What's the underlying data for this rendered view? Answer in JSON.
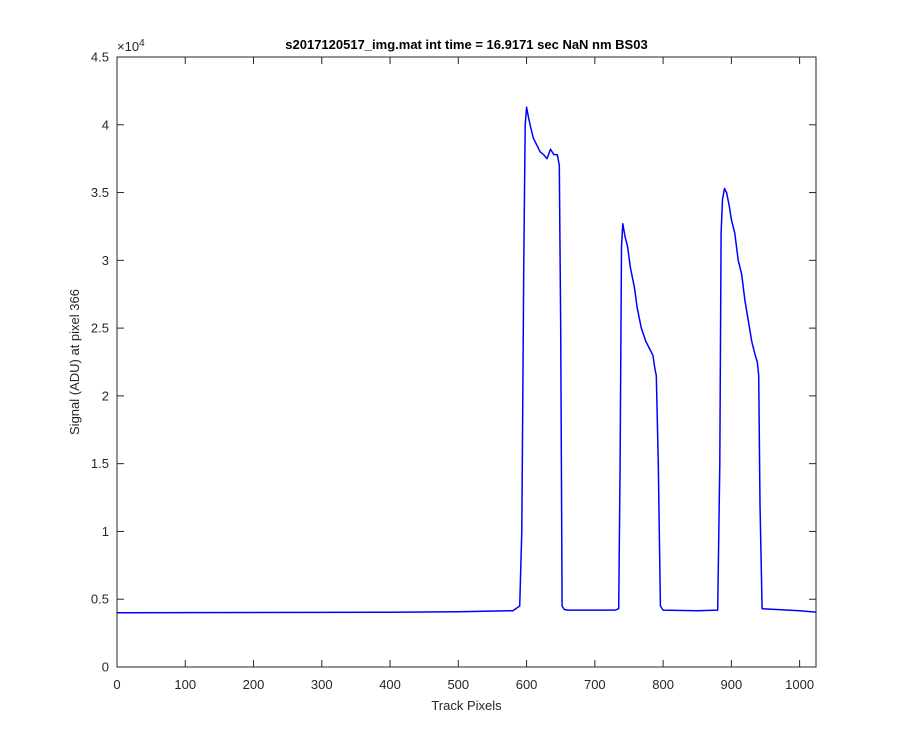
{
  "chart_data": {
    "type": "line",
    "title": "s2017120517_img.mat int time = 16.9171 sec  NaN nm BS03",
    "xlabel": "Track Pixels",
    "ylabel": "Signal (ADU) at pixel 366",
    "xlim": [
      0,
      1024
    ],
    "ylim": [
      0,
      45000
    ],
    "xticks": [
      0,
      100,
      200,
      300,
      400,
      500,
      600,
      700,
      800,
      900,
      1000
    ],
    "xtick_labels": [
      "0",
      "100",
      "200",
      "300",
      "400",
      "500",
      "600",
      "700",
      "800",
      "900",
      "1000"
    ],
    "yticks": [
      0,
      5000,
      10000,
      15000,
      20000,
      25000,
      30000,
      35000,
      40000,
      45000
    ],
    "ytick_labels": [
      "0",
      "0.5",
      "1",
      "1.5",
      "2",
      "2.5",
      "3",
      "3.5",
      "4",
      "4.5"
    ],
    "y_exponent_label": "×10",
    "y_exponent_power": "4",
    "grid": false,
    "line_color": "#0000ff",
    "series": [
      {
        "x": [
          0,
          100,
          200,
          300,
          400,
          500,
          580,
          590,
          593,
          596,
          598,
          600,
          603,
          606,
          610,
          615,
          620,
          625,
          630,
          635,
          640,
          645,
          648,
          650,
          652,
          655,
          660,
          700,
          730,
          735,
          737,
          739,
          741,
          744,
          748,
          752,
          758,
          762,
          768,
          775,
          780,
          785,
          788,
          790,
          793,
          796,
          800,
          850,
          880,
          883,
          885,
          887,
          890,
          893,
          897,
          900,
          905,
          910,
          915,
          920,
          925,
          930,
          935,
          938,
          940,
          942,
          945,
          1000,
          1024
        ],
        "y": [
          4000,
          4010,
          4020,
          4030,
          4040,
          4080,
          4150,
          4500,
          10000,
          30000,
          40000,
          41300,
          40500,
          39800,
          39000,
          38500,
          38000,
          37800,
          37500,
          38200,
          37800,
          37800,
          37000,
          25000,
          4500,
          4250,
          4200,
          4200,
          4200,
          4300,
          15000,
          31000,
          32700,
          31800,
          31000,
          29500,
          28000,
          26500,
          25000,
          24000,
          23500,
          23000,
          22000,
          21500,
          15000,
          4500,
          4200,
          4150,
          4200,
          15000,
          32000,
          34500,
          35300,
          35000,
          34000,
          33000,
          32000,
          30000,
          29000,
          27000,
          25500,
          24000,
          23000,
          22500,
          21500,
          12000,
          4300,
          4150,
          4050
        ]
      }
    ]
  }
}
